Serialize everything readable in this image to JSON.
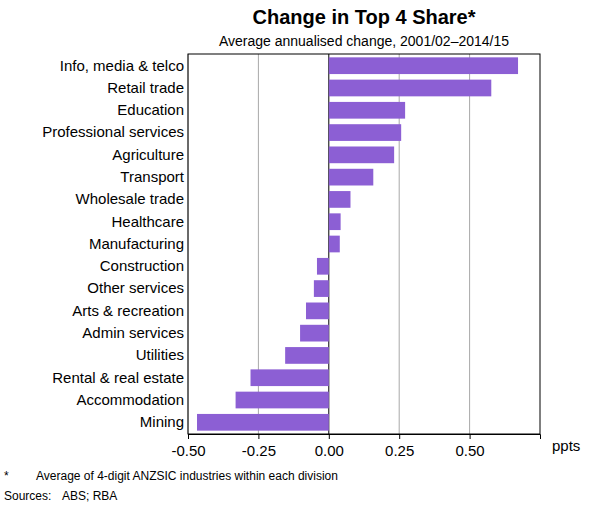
{
  "chart_data": {
    "type": "bar",
    "orientation": "horizontal",
    "title": "Change in Top 4 Share*",
    "subtitle": "Average annualised change, 2001/02–2014/15",
    "xlabel": "ppts",
    "categories": [
      "Info, media & telco",
      "Retail trade",
      "Education",
      "Professional services",
      "Agriculture",
      "Transport",
      "Wholesale trade",
      "Healthcare",
      "Manufacturing",
      "Construction",
      "Other services",
      "Arts & recreation",
      "Admin services",
      "Utilities",
      "Rental & real estate",
      "Accommodation",
      "Mining"
    ],
    "values": [
      0.672,
      0.577,
      0.271,
      0.257,
      0.232,
      0.158,
      0.077,
      0.042,
      0.039,
      -0.042,
      -0.053,
      -0.081,
      -0.102,
      -0.155,
      -0.278,
      -0.331,
      -0.468
    ],
    "color": "#8c5fd4",
    "xlim": [
      -0.5,
      0.75
    ],
    "xticks": [
      {
        "value": -0.5,
        "label": "-0.50"
      },
      {
        "value": -0.25,
        "label": "-0.25"
      },
      {
        "value": 0,
        "label": "0.00"
      },
      {
        "value": 0.25,
        "label": "0.25"
      },
      {
        "value": 0.5,
        "label": "0.50"
      }
    ],
    "grid": true,
    "footnote": {
      "marker": "*",
      "text": "Average of 4-digit ANZSIC industries within each division"
    },
    "sources": {
      "label": "Sources:",
      "text": "ABS; RBA"
    }
  }
}
